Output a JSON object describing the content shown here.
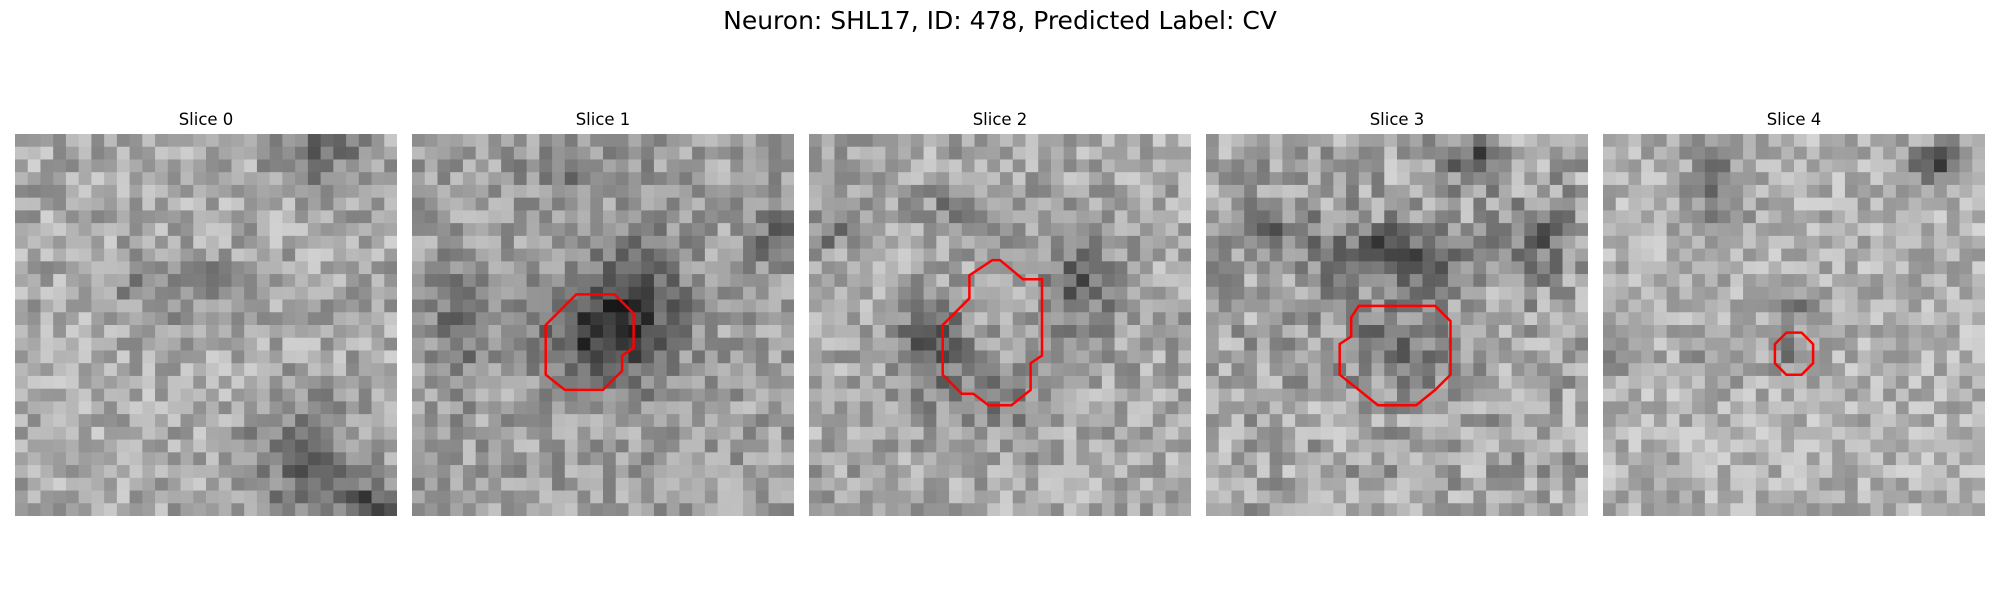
{
  "figure": {
    "title": "Neuron: SHL17, ID: 478, Predicted Label: CV"
  },
  "contour_color": "#ff0000",
  "colormap": "grayscale",
  "panels": [
    {
      "title": "Slice 0",
      "seed": 11,
      "base": 170,
      "contrast": 40,
      "dark_blobs": [
        [
          0.45,
          0.4,
          0.2,
          0.07,
          45
        ],
        [
          0.8,
          0.05,
          0.12,
          0.1,
          55
        ],
        [
          0.75,
          0.85,
          0.14,
          0.16,
          60
        ],
        [
          0.95,
          0.97,
          0.1,
          0.06,
          90
        ]
      ],
      "contour": []
    },
    {
      "title": "Slice 1",
      "seed": 23,
      "base": 160,
      "contrast": 38,
      "dark_blobs": [
        [
          0.48,
          0.52,
          0.14,
          0.13,
          90
        ],
        [
          0.6,
          0.45,
          0.12,
          0.18,
          65
        ],
        [
          0.12,
          0.5,
          0.06,
          0.15,
          60
        ],
        [
          0.45,
          0.1,
          0.15,
          0.06,
          35
        ],
        [
          0.95,
          0.28,
          0.05,
          0.07,
          65
        ]
      ],
      "contour": [
        [
          0.47,
          0.42
        ],
        [
          0.53,
          0.42
        ],
        [
          0.58,
          0.47
        ],
        [
          0.58,
          0.56
        ],
        [
          0.55,
          0.58
        ],
        [
          0.55,
          0.62
        ],
        [
          0.5,
          0.67
        ],
        [
          0.4,
          0.67
        ],
        [
          0.35,
          0.63
        ],
        [
          0.35,
          0.5
        ],
        [
          0.4,
          0.45
        ],
        [
          0.43,
          0.42
        ]
      ]
    },
    {
      "title": "Slice 2",
      "seed": 37,
      "base": 168,
      "contrast": 40,
      "dark_blobs": [
        [
          0.32,
          0.55,
          0.1,
          0.12,
          70
        ],
        [
          0.7,
          0.4,
          0.1,
          0.12,
          70
        ],
        [
          0.5,
          0.7,
          0.15,
          0.08,
          45
        ],
        [
          0.4,
          0.2,
          0.1,
          0.07,
          45
        ],
        [
          0.05,
          0.25,
          0.05,
          0.06,
          55
        ]
      ],
      "contour": [
        [
          0.48,
          0.33
        ],
        [
          0.5,
          0.33
        ],
        [
          0.56,
          0.38
        ],
        [
          0.61,
          0.38
        ],
        [
          0.61,
          0.58
        ],
        [
          0.58,
          0.6
        ],
        [
          0.58,
          0.67
        ],
        [
          0.53,
          0.71
        ],
        [
          0.47,
          0.71
        ],
        [
          0.43,
          0.68
        ],
        [
          0.4,
          0.68
        ],
        [
          0.35,
          0.63
        ],
        [
          0.35,
          0.5
        ],
        [
          0.42,
          0.43
        ],
        [
          0.42,
          0.37
        ]
      ]
    },
    {
      "title": "Slice 3",
      "seed": 51,
      "base": 165,
      "contrast": 46,
      "dark_blobs": [
        [
          0.5,
          0.32,
          0.2,
          0.08,
          90
        ],
        [
          0.5,
          0.55,
          0.16,
          0.12,
          45
        ],
        [
          0.7,
          0.07,
          0.08,
          0.06,
          80
        ],
        [
          0.15,
          0.25,
          0.12,
          0.07,
          45
        ],
        [
          0.88,
          0.28,
          0.08,
          0.1,
          55
        ]
      ],
      "contour": [
        [
          0.4,
          0.45
        ],
        [
          0.6,
          0.45
        ],
        [
          0.64,
          0.49
        ],
        [
          0.64,
          0.63
        ],
        [
          0.6,
          0.67
        ],
        [
          0.55,
          0.71
        ],
        [
          0.45,
          0.71
        ],
        [
          0.4,
          0.67
        ],
        [
          0.35,
          0.63
        ],
        [
          0.35,
          0.55
        ],
        [
          0.38,
          0.53
        ],
        [
          0.38,
          0.48
        ]
      ]
    },
    {
      "title": "Slice 4",
      "seed": 67,
      "base": 178,
      "contrast": 36,
      "dark_blobs": [
        [
          0.88,
          0.08,
          0.08,
          0.05,
          100
        ],
        [
          0.3,
          0.15,
          0.08,
          0.12,
          60
        ],
        [
          0.5,
          0.45,
          0.05,
          0.05,
          55
        ],
        [
          0.06,
          0.58,
          0.05,
          0.05,
          60
        ],
        [
          0.3,
          0.6,
          0.08,
          0.05,
          40
        ],
        [
          0.5,
          0.58,
          0.06,
          0.06,
          45
        ]
      ],
      "contour": [
        [
          0.48,
          0.52
        ],
        [
          0.52,
          0.52
        ],
        [
          0.55,
          0.55
        ],
        [
          0.55,
          0.6
        ],
        [
          0.52,
          0.63
        ],
        [
          0.48,
          0.63
        ],
        [
          0.45,
          0.6
        ],
        [
          0.45,
          0.55
        ]
      ]
    }
  ]
}
